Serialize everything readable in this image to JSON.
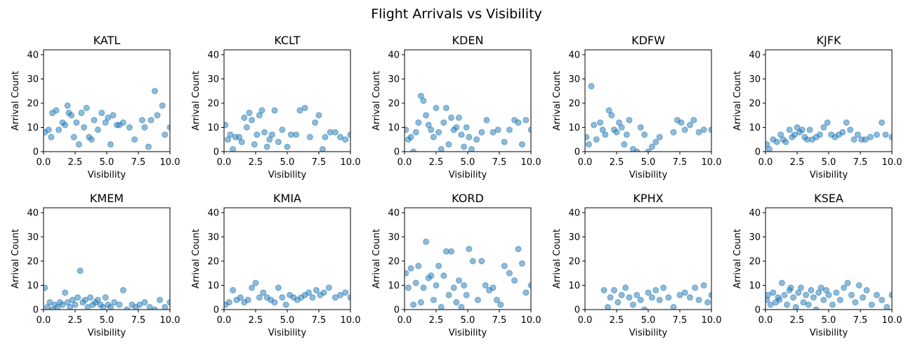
{
  "figure": {
    "title": "Flight Arrivals vs Visibility"
  },
  "chart_data": [
    {
      "type": "scatter",
      "title": "KATL",
      "xlabel": "Visibility",
      "ylabel": "Arrival Count",
      "xlim": [
        0,
        10
      ],
      "ylim": [
        0,
        42
      ],
      "x": [
        0.1,
        0.4,
        0.6,
        0.7,
        1.0,
        1.2,
        1.5,
        1.7,
        1.9,
        2.0,
        2.2,
        2.4,
        2.6,
        2.8,
        3.0,
        3.2,
        3.4,
        3.6,
        3.8,
        4.0,
        4.3,
        4.6,
        4.9,
        5.1,
        5.3,
        5.5,
        5.8,
        6.0,
        6.3,
        6.8,
        7.2,
        7.8,
        8.0,
        8.3,
        8.5,
        8.8,
        9.0,
        9.4,
        9.6,
        10.0
      ],
      "y": [
        8,
        9,
        6,
        16,
        17,
        9,
        12,
        11,
        19,
        16,
        15,
        6,
        12,
        3,
        16,
        10,
        18,
        6,
        5,
        13,
        9,
        16,
        12,
        14,
        3,
        15,
        11,
        11,
        12,
        10,
        5,
        13,
        10,
        2,
        13,
        25,
        15,
        19,
        7,
        10
      ]
    },
    {
      "type": "scatter",
      "title": "KCLT",
      "xlabel": "Visibility",
      "ylabel": "Arrival Count",
      "xlim": [
        0,
        10
      ],
      "ylim": [
        0,
        42
      ],
      "x": [
        0.1,
        0.3,
        0.5,
        0.7,
        0.9,
        1.2,
        1.4,
        1.6,
        1.8,
        2.0,
        2.2,
        2.4,
        2.6,
        2.8,
        3.0,
        3.2,
        3.4,
        3.6,
        3.8,
        4.0,
        4.3,
        4.6,
        5.0,
        5.3,
        5.7,
        6.0,
        6.4,
        6.8,
        7.2,
        7.5,
        7.8,
        8.0,
        8.4,
        8.8,
        9.2,
        9.6,
        10.0
      ],
      "y": [
        11,
        5,
        7,
        1,
        6,
        6,
        4,
        14,
        10,
        16,
        13,
        3,
        7,
        15,
        17,
        8,
        2,
        5,
        7,
        17,
        4,
        9,
        2,
        7,
        7,
        17,
        18,
        6,
        12,
        15,
        1,
        6,
        8,
        8,
        6,
        5,
        7
      ]
    },
    {
      "type": "scatter",
      "title": "KDEN",
      "xlabel": "Visibility",
      "ylabel": "Arrival Count",
      "xlim": [
        0,
        10
      ],
      "ylim": [
        0,
        42
      ],
      "x": [
        0.1,
        0.3,
        0.5,
        0.7,
        0.9,
        1.1,
        1.3,
        1.5,
        1.7,
        1.9,
        2.1,
        2.3,
        2.5,
        2.7,
        2.9,
        3.1,
        3.3,
        3.5,
        3.7,
        3.9,
        4.1,
        4.3,
        4.5,
        4.7,
        4.9,
        5.1,
        5.3,
        5.7,
        6.1,
        6.5,
        7.0,
        7.4,
        7.9,
        8.3,
        8.7,
        9.0,
        9.3,
        9.6,
        10.0
      ],
      "y": [
        9,
        5,
        6,
        0,
        8,
        12,
        23,
        21,
        15,
        11,
        9,
        6,
        18,
        8,
        1,
        12,
        18,
        3,
        14,
        9,
        10,
        14,
        7,
        2,
        10,
        6,
        1,
        5,
        8,
        13,
        8,
        9,
        4,
        9,
        13,
        12,
        3,
        13,
        9
      ]
    },
    {
      "type": "scatter",
      "title": "KDFW",
      "xlabel": "Visibility",
      "ylabel": "Arrival Count",
      "xlim": [
        0,
        10
      ],
      "ylim": [
        0,
        42
      ],
      "x": [
        0.1,
        0.3,
        0.5,
        0.7,
        0.9,
        1.2,
        1.4,
        1.6,
        1.9,
        2.1,
        2.3,
        2.5,
        2.7,
        2.9,
        3.1,
        3.3,
        3.5,
        3.8,
        4.1,
        4.4,
        4.7,
        5.0,
        5.3,
        5.6,
        5.9,
        7.0,
        7.3,
        7.6,
        7.9,
        8.3,
        8.6,
        9.0,
        9.4,
        10.0
      ],
      "y": [
        6,
        3,
        27,
        11,
        5,
        12,
        9,
        7,
        17,
        15,
        9,
        8,
        12,
        10,
        3,
        7,
        13,
        1,
        0,
        10,
        7,
        0,
        2,
        4,
        6,
        8,
        13,
        12,
        9,
        11,
        13,
        8,
        9,
        9
      ]
    },
    {
      "type": "scatter",
      "title": "KJFK",
      "xlabel": "Visibility",
      "ylabel": "Arrival Count",
      "xlim": [
        0,
        10
      ],
      "ylim": [
        0,
        42
      ],
      "x": [
        0.1,
        0.3,
        0.6,
        0.9,
        1.2,
        1.4,
        1.6,
        1.9,
        2.1,
        2.3,
        2.5,
        2.7,
        2.9,
        3.1,
        3.3,
        3.5,
        3.7,
        4.0,
        4.3,
        4.6,
        4.9,
        5.2,
        5.5,
        5.8,
        6.1,
        6.4,
        6.7,
        7.0,
        7.3,
        7.6,
        7.9,
        8.3,
        8.8,
        9.2,
        9.5,
        10.0
      ],
      "y": [
        3,
        1,
        5,
        4,
        7,
        5,
        4,
        9,
        6,
        7,
        10,
        8,
        9,
        6,
        5,
        9,
        5,
        6,
        7,
        10,
        12,
        7,
        6,
        7,
        8,
        12,
        9,
        5,
        7,
        5,
        5,
        6,
        7,
        12,
        7,
        6
      ]
    },
    {
      "type": "scatter",
      "title": "KMEM",
      "xlabel": "Visibility",
      "ylabel": "Arrival Count",
      "xlim": [
        0,
        10
      ],
      "ylim": [
        0,
        42
      ],
      "x": [
        0.1,
        0.3,
        0.5,
        0.7,
        0.9,
        1.1,
        1.3,
        1.5,
        1.7,
        1.9,
        2.1,
        2.3,
        2.5,
        2.7,
        2.9,
        3.1,
        3.3,
        3.5,
        3.7,
        3.9,
        4.1,
        4.3,
        4.5,
        4.7,
        4.9,
        5.1,
        5.3,
        5.6,
        6.0,
        6.3,
        6.6,
        7.0,
        7.3,
        7.6,
        8.0,
        8.4,
        8.8,
        9.2,
        9.6,
        10.0
      ],
      "y": [
        9,
        1,
        3,
        0,
        2,
        1,
        3,
        2,
        7,
        3,
        1,
        4,
        2,
        5,
        16,
        3,
        4,
        1,
        5,
        2,
        3,
        4,
        2,
        1,
        5,
        2,
        1,
        3,
        2,
        8,
        0,
        2,
        1,
        2,
        3,
        1,
        0,
        4,
        1,
        3
      ]
    },
    {
      "type": "scatter",
      "title": "KMIA",
      "xlabel": "Visibility",
      "ylabel": "Arrival Count",
      "xlim": [
        0,
        10
      ],
      "ylim": [
        0,
        42
      ],
      "x": [
        0.1,
        0.4,
        0.7,
        1.0,
        1.3,
        1.6,
        1.9,
        2.2,
        2.5,
        2.8,
        3.1,
        3.4,
        3.7,
        4.0,
        4.3,
        4.6,
        4.9,
        5.2,
        5.5,
        5.8,
        6.1,
        6.4,
        6.7,
        7.0,
        7.3,
        7.6,
        7.9,
        8.3,
        8.8,
        9.2,
        9.6,
        10.0
      ],
      "y": [
        2,
        3,
        8,
        4,
        5,
        3,
        4,
        9,
        11,
        5,
        7,
        5,
        4,
        3,
        9,
        5,
        2,
        6,
        5,
        4,
        5,
        6,
        7,
        5,
        8,
        6,
        7,
        9,
        5,
        6,
        7,
        5
      ]
    },
    {
      "type": "scatter",
      "title": "KORD",
      "xlabel": "Visibility",
      "ylabel": "Arrival Count",
      "xlim": [
        0,
        10
      ],
      "ylim": [
        0,
        42
      ],
      "x": [
        0.1,
        0.3,
        0.5,
        0.7,
        0.9,
        1.1,
        1.3,
        1.5,
        1.7,
        1.9,
        2.1,
        2.3,
        2.5,
        2.7,
        2.9,
        3.1,
        3.3,
        3.5,
        3.7,
        3.9,
        4.1,
        4.3,
        4.5,
        4.7,
        4.9,
        5.1,
        5.4,
        5.8,
        6.1,
        6.4,
        6.7,
        7.0,
        7.3,
        7.6,
        7.9,
        8.3,
        8.7,
        9.0,
        9.3,
        9.6,
        10.0
      ],
      "y": [
        15,
        9,
        17,
        2,
        11,
        18,
        3,
        9,
        28,
        13,
        14,
        4,
        10,
        18,
        1,
        14,
        24,
        6,
        24,
        9,
        3,
        12,
        1,
        10,
        6,
        25,
        20,
        4,
        20,
        10,
        8,
        9,
        4,
        2,
        18,
        15,
        12,
        25,
        19,
        7,
        10
      ]
    },
    {
      "type": "scatter",
      "title": "KPHX",
      "xlabel": "Visibility",
      "ylabel": "Arrival Count",
      "xlim": [
        0,
        10
      ],
      "ylim": [
        0,
        42
      ],
      "x": [
        1.5,
        1.8,
        2.0,
        2.3,
        2.6,
        2.9,
        3.2,
        3.5,
        3.8,
        4.1,
        4.4,
        4.7,
        5.0,
        5.3,
        5.6,
        5.9,
        6.2,
        6.6,
        7.0,
        7.5,
        7.9,
        8.3,
        8.7,
        9.0,
        9.4,
        9.7,
        10.0
      ],
      "y": [
        8,
        1,
        5,
        8,
        3,
        6,
        9,
        5,
        2,
        6,
        4,
        0,
        7,
        5,
        8,
        4,
        9,
        5,
        1,
        6,
        7,
        5,
        9,
        4,
        10,
        3,
        6
      ]
    },
    {
      "type": "scatter",
      "title": "KSEA",
      "xlabel": "Visibility",
      "ylabel": "Arrival Count",
      "xlim": [
        0,
        10
      ],
      "ylim": [
        0,
        42
      ],
      "x": [
        0.1,
        0.2,
        0.4,
        0.6,
        0.8,
        1.0,
        1.1,
        1.3,
        1.5,
        1.7,
        1.9,
        2.0,
        2.2,
        2.4,
        2.6,
        2.8,
        3.0,
        3.2,
        3.4,
        3.6,
        3.8,
        4.0,
        4.2,
        4.4,
        4.6,
        4.8,
        5.0,
        5.3,
        5.6,
        5.9,
        6.2,
        6.5,
        6.8,
        7.1,
        7.4,
        7.7,
        8.0,
        8.4,
        8.8,
        9.2,
        9.6,
        10.0
      ],
      "y": [
        4,
        6,
        2,
        7,
        3,
        5,
        4,
        11,
        6,
        2,
        8,
        9,
        5,
        1,
        7,
        9,
        3,
        6,
        2,
        8,
        5,
        0,
        7,
        9,
        4,
        8,
        6,
        2,
        7,
        4,
        9,
        11,
        6,
        3,
        10,
        5,
        8,
        2,
        6,
        4,
        1,
        6
      ]
    }
  ]
}
